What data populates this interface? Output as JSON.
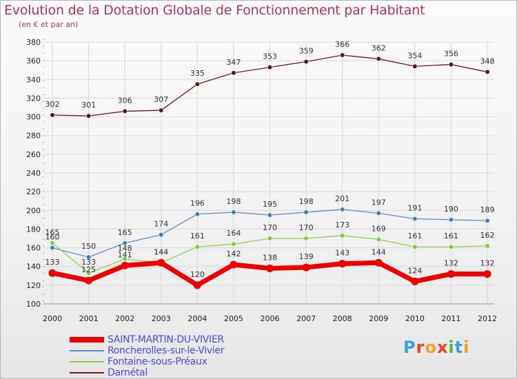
{
  "title": "Evolution de la Dotation Globale de Fonctionnement par Habitant",
  "subtitle": "(en € et par an)",
  "logo": {
    "text": "Proxiti",
    "letters": [
      "P",
      "r",
      "o",
      "x",
      "i",
      "t",
      "i"
    ],
    "colors": [
      "#3aa0d9",
      "#e2402a",
      "#f0a030",
      "#e2402a",
      "#60b040",
      "#3aa0d9",
      "#f0a030"
    ]
  },
  "chart_data": {
    "type": "line",
    "title": "Evolution de la Dotation Globale de Fonctionnement par Habitant",
    "subtitle": "(en € et par an)",
    "x": [
      2000,
      2001,
      2002,
      2003,
      2004,
      2005,
      2006,
      2007,
      2008,
      2009,
      2010,
      2011,
      2012
    ],
    "ylim": [
      100,
      380
    ],
    "yticks": [
      100,
      120,
      140,
      160,
      180,
      200,
      220,
      240,
      260,
      280,
      300,
      320,
      340,
      360,
      380
    ],
    "grid": true,
    "legend_position": "bottom-left",
    "series": [
      {
        "name": "Darnétal",
        "color": "#6b1b1f",
        "values": [
          302,
          301,
          306,
          307,
          335,
          347,
          353,
          359,
          366,
          362,
          354,
          356,
          348
        ]
      },
      {
        "name": "Roncherolles-sur-le-Vivier",
        "color": "#5b8fc4",
        "values": [
          160,
          150,
          165,
          174,
          196,
          198,
          195,
          198,
          201,
          197,
          191,
          190,
          189
        ]
      },
      {
        "name": "Fontaine-sous-Préaux",
        "color": "#88d24b",
        "values": [
          165,
          133,
          148,
          144,
          161,
          164,
          170,
          170,
          173,
          169,
          161,
          161,
          162
        ]
      },
      {
        "name": "SAINT-MARTIN-DU-VIVIER",
        "color": "#ee0000",
        "values": [
          133,
          125,
          141,
          144,
          120,
          142,
          138,
          139,
          143,
          144,
          124,
          132,
          132
        ]
      }
    ],
    "legend_order": [
      "SAINT-MARTIN-DU-VIVIER",
      "Roncherolles-sur-le-Vivier",
      "Fontaine-sous-Préaux",
      "Darnétal"
    ]
  }
}
